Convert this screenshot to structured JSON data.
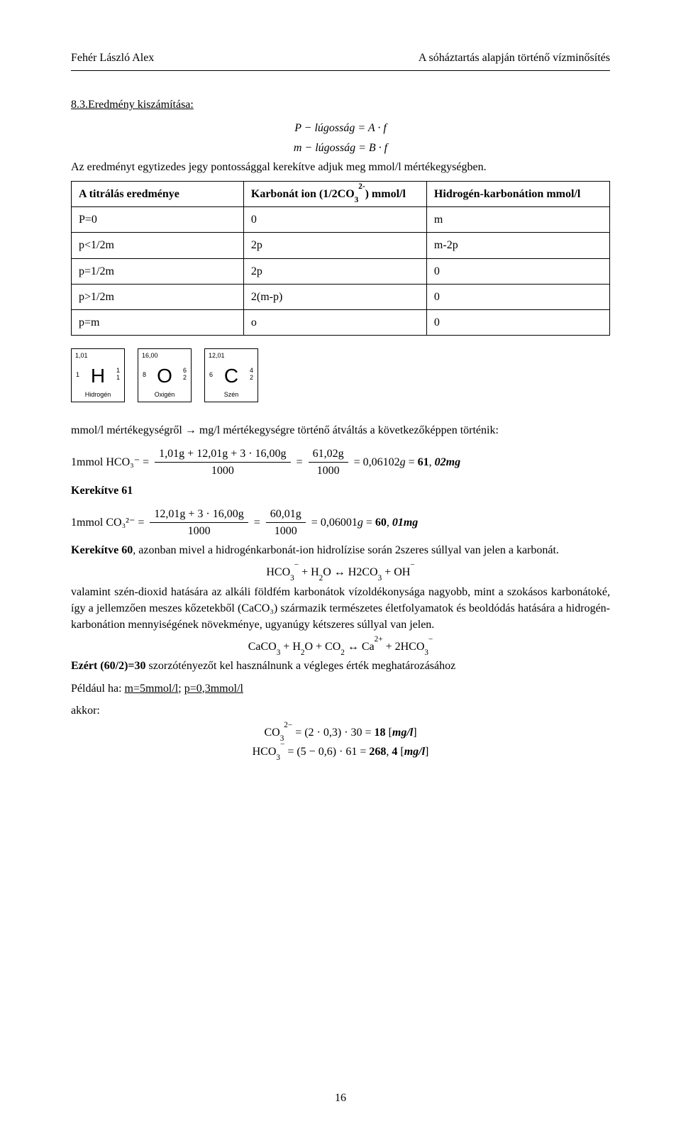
{
  "colors": {
    "text": "#000000",
    "background": "#ffffff",
    "border": "#000000"
  },
  "fonts": {
    "body": "Times New Roman",
    "math": "Cambria Math",
    "elements": "Arial",
    "body_size_pt": 12
  },
  "header": {
    "left": "Fehér László Alex",
    "right": "A sóháztartás alapján történő vízminősítés"
  },
  "section": {
    "number_title": "8.3.Eredmény kiszámítása:"
  },
  "equations_top": {
    "line1": "P − lúgosság = A · f",
    "line2": "m − lúgosság = B · f"
  },
  "sentence_after_top_eq": "Az eredményt egytizedes jegy pontossággal kerekítve adjuk meg mmol/l mértékegységben.",
  "table": {
    "type": "table",
    "col_widths": [
      "32%",
      "34%",
      "34%"
    ],
    "border_color": "#000000",
    "header_row": [
      {
        "html": "A titrálás eredménye"
      },
      {
        "html": "Karbonát ion (1/2CO<sub>3</sub><sup>2-</sup>) mmol/l"
      },
      {
        "html": "Hidrogén-karbonátion mmol/l"
      }
    ],
    "rows": [
      [
        "P=0",
        "0",
        "m"
      ],
      [
        "p<1/2m",
        "2p",
        "m-2p"
      ],
      [
        "p=1/2m",
        "2p",
        "0"
      ],
      [
        "p>1/2m",
        "2(m-p)",
        "0"
      ],
      [
        "p=m",
        "o",
        "0"
      ]
    ]
  },
  "elements": [
    {
      "symbol": "H",
      "name": "Hidrogén",
      "mass": "1,01",
      "Z": "1",
      "group1": "1",
      "group2": "1"
    },
    {
      "symbol": "O",
      "name": "Oxigén",
      "mass": "16,00",
      "Z": "8",
      "group1": "6",
      "group2": "2"
    },
    {
      "symbol": "C",
      "name": "Szén",
      "mass": "12,01",
      "Z": "6",
      "group1": "4",
      "group2": "2"
    }
  ],
  "conversion_intro": "mmol/l mértékegységről → mg/l mértékegységre történő átváltás a következőképpen történik:",
  "hco3_calc": {
    "lhs": "1mmol HCO₃⁻ =",
    "frac1_num": "1,01g + 12,01g + 3 · 16,00g",
    "frac1_den": "1000",
    "frac2_num": "61,02g",
    "frac2_den": "1000",
    "tail": "= 0,06102g = 61, 02mg"
  },
  "hco3_round": "Kerekítve 61",
  "co3_calc": {
    "lhs": "1mmol CO₃²⁻ =",
    "frac1_num": "12,01g + 3 · 16,00g",
    "frac1_den": "1000",
    "frac2_num": "60,01g",
    "frac2_den": "1000",
    "tail": "= 0,06001g = 60, 01mg"
  },
  "co3_round_sentence": "Kerekítve 60, azonban mivel a hidrogénkarbonát-ion hidrolízise során 2szeres súllyal van jelen a karbonát.",
  "eq_hydrolysis": "HCO₃⁻ + H₂O ↔ H2CO₃ + OH⁻",
  "paragraph_after_hydrolysis": "valamint szén-dioxid hatására az alkáli földfém karbonátok vízoldékonysága nagyobb, mint a szokásos karbonátoké, így a jellemzően meszes kőzetekből (CaCO₃) származik természetes életfolyamatok és beoldódás hatására a hidrogén-karbonátion mennyiségének növekménye, ugyanúgy kétszeres súllyal van jelen.",
  "eq_caco3": "CaCO₃ + H₂O + CO₂ ↔ Ca²⁺ + 2HCO₃⁻",
  "reason_30": "Ezért (60/2)=30 szorzótényezőt kel használnunk a végleges érték meghatározásához",
  "example_intro": "Például ha: ",
  "example_m": "m=5mmol/l",
  "example_sep": "; ",
  "example_p": "p=0,3mmol/l",
  "then_label": "akkor:",
  "eq_result_co3": "CO₃²⁻ = (2 · 0,3) · 30 = 18 [mg/l]",
  "eq_result_hco3": "HCO₃⁻ = (5 − 0,6) · 61 = 268, 4 [mg/l]",
  "page_number": "16"
}
